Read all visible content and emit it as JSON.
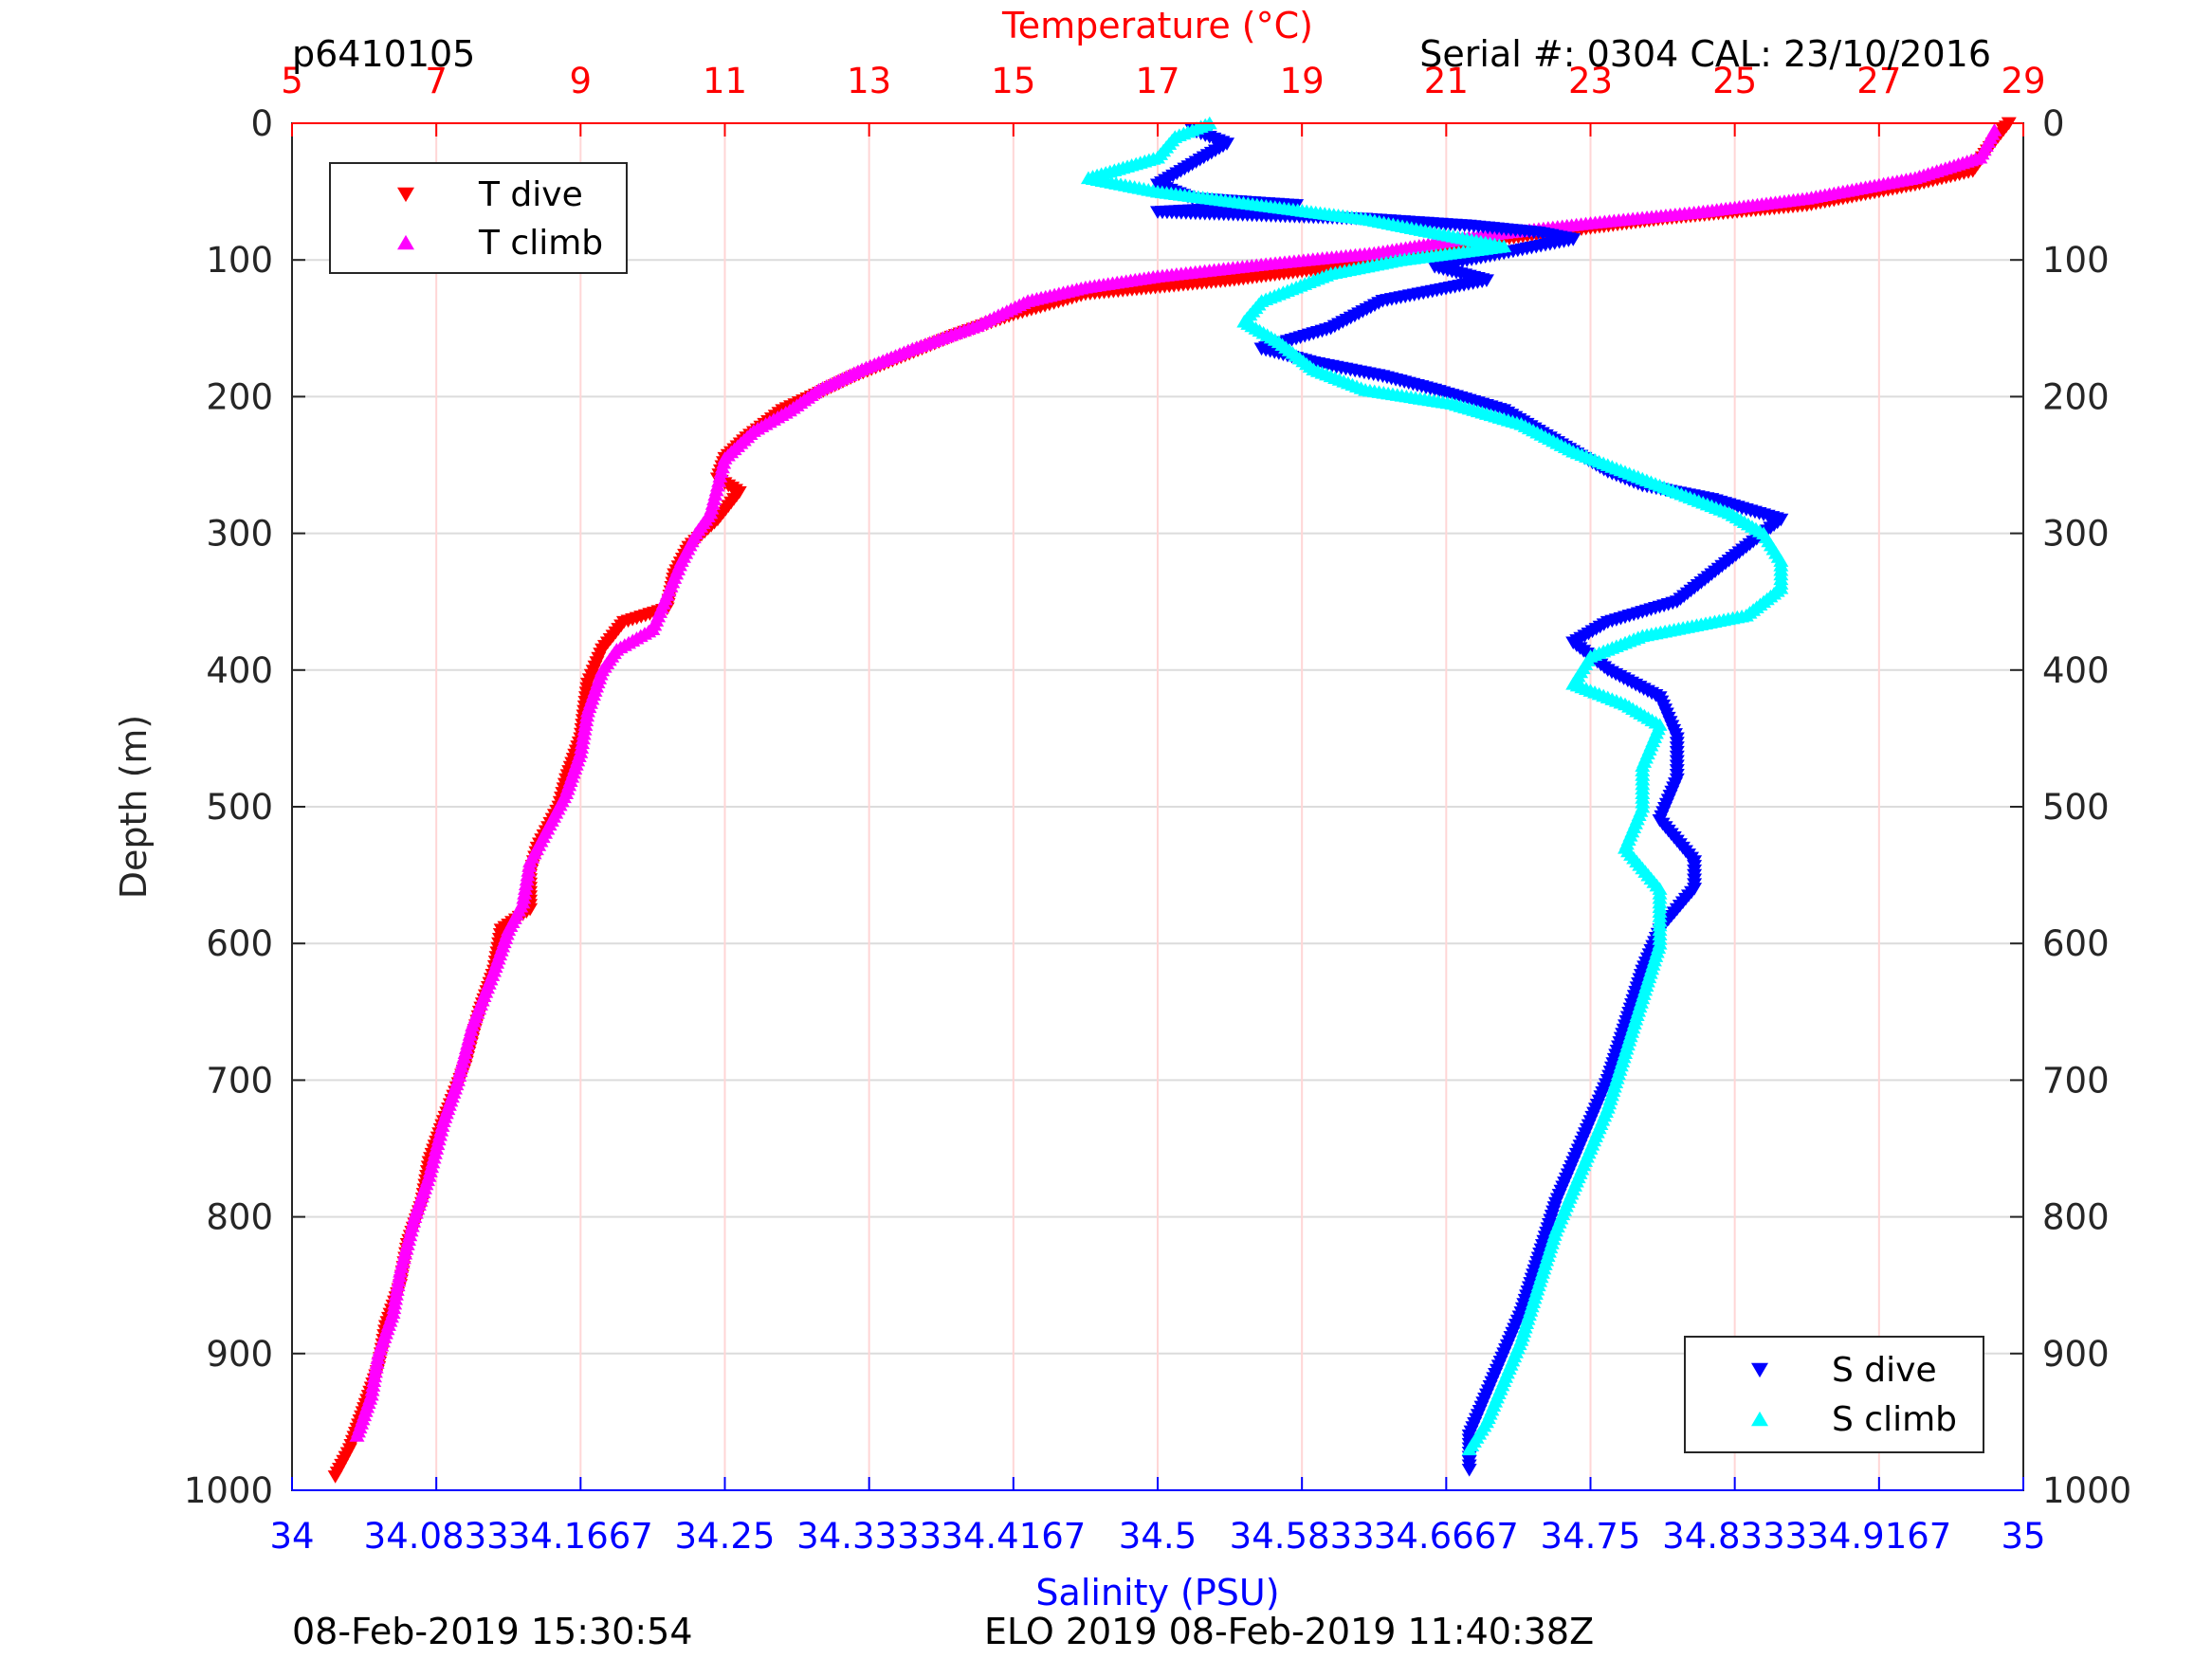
{
  "header": {
    "profile_id": "p6410105",
    "serial": "Serial #: 0304  CAL: 23/10/2016"
  },
  "footer": {
    "left": "08-Feb-2019 15:30:54",
    "center": "ELO 2019 08-Feb-2019 11:40:38Z"
  },
  "colors": {
    "t_dive": "#ff0000",
    "t_climb": "#ff00ff",
    "s_dive": "#0000ff",
    "s_climb": "#00ffff",
    "temp_axis": "#ff0000",
    "sal_axis": "#0000ff"
  },
  "chart_data": {
    "type": "scatter",
    "title": "",
    "ylabel": "Depth (m)",
    "ylim": [
      0,
      1000
    ],
    "y_reversed": true,
    "yticks": [
      "0",
      "100",
      "200",
      "300",
      "400",
      "500",
      "600",
      "700",
      "800",
      "900",
      "1000"
    ],
    "temperature_axis": {
      "label": "Temperature (°C)",
      "range": [
        5,
        29
      ],
      "ticks": [
        "5",
        "7",
        "9",
        "11",
        "13",
        "15",
        "17",
        "19",
        "21",
        "23",
        "25",
        "27",
        "29"
      ]
    },
    "salinity_axis": {
      "label": "Salinity (PSU)",
      "range": [
        34,
        35
      ],
      "ticks": [
        "34",
        "34.0833",
        "34.1667",
        "34.25",
        "34.3333",
        "34.4167",
        "34.5",
        "34.5833",
        "34.6667",
        "34.75",
        "34.8333",
        "34.9167",
        "35"
      ]
    },
    "grid": true,
    "legend_temperature": {
      "position": "top-left",
      "entries": [
        "T dive",
        "T climb"
      ]
    },
    "legend_salinity": {
      "position": "bottom-right",
      "entries": [
        "S dive",
        "S climb"
      ]
    },
    "series": [
      {
        "name": "T dive",
        "axis": "temperature",
        "marker": "triangle-down",
        "points": [
          [
            28.8,
            0
          ],
          [
            28.5,
            20
          ],
          [
            28.3,
            35
          ],
          [
            27.5,
            45
          ],
          [
            26.0,
            60
          ],
          [
            24.0,
            70
          ],
          [
            22.5,
            80
          ],
          [
            21.0,
            90
          ],
          [
            19.5,
            105
          ],
          [
            18.0,
            115
          ],
          [
            16.0,
            125
          ],
          [
            15.0,
            140
          ],
          [
            14.2,
            155
          ],
          [
            13.5,
            170
          ],
          [
            12.8,
            185
          ],
          [
            12.2,
            200
          ],
          [
            11.8,
            210
          ],
          [
            11.3,
            230
          ],
          [
            11.0,
            245
          ],
          [
            10.9,
            260
          ],
          [
            11.2,
            270
          ],
          [
            10.9,
            290
          ],
          [
            10.5,
            310
          ],
          [
            10.3,
            330
          ],
          [
            10.2,
            355
          ],
          [
            9.6,
            365
          ],
          [
            9.3,
            385
          ],
          [
            9.1,
            410
          ],
          [
            9.0,
            450
          ],
          [
            8.8,
            480
          ],
          [
            8.7,
            500
          ],
          [
            8.4,
            530
          ],
          [
            8.3,
            550
          ],
          [
            8.3,
            575
          ],
          [
            7.9,
            590
          ],
          [
            7.8,
            620
          ],
          [
            7.6,
            650
          ],
          [
            7.4,
            690
          ],
          [
            7.1,
            730
          ],
          [
            6.9,
            760
          ],
          [
            6.8,
            790
          ],
          [
            6.6,
            820
          ],
          [
            6.5,
            850
          ],
          [
            6.3,
            880
          ],
          [
            6.2,
            910
          ],
          [
            6.0,
            940
          ],
          [
            5.8,
            970
          ],
          [
            5.6,
            990
          ]
        ]
      },
      {
        "name": "T climb",
        "axis": "temperature",
        "marker": "triangle-up",
        "points": [
          [
            28.6,
            5
          ],
          [
            28.4,
            25
          ],
          [
            27.5,
            40
          ],
          [
            26.0,
            55
          ],
          [
            24.5,
            65
          ],
          [
            23.0,
            73
          ],
          [
            21.5,
            82
          ],
          [
            20.0,
            95
          ],
          [
            18.5,
            103
          ],
          [
            17.0,
            112
          ],
          [
            16.0,
            120
          ],
          [
            15.2,
            130
          ],
          [
            14.5,
            148
          ],
          [
            13.6,
            165
          ],
          [
            12.9,
            180
          ],
          [
            12.3,
            195
          ],
          [
            11.9,
            210
          ],
          [
            11.4,
            225
          ],
          [
            11.0,
            245
          ],
          [
            10.9,
            265
          ],
          [
            10.8,
            285
          ],
          [
            10.6,
            300
          ],
          [
            10.4,
            320
          ],
          [
            10.2,
            345
          ],
          [
            10.0,
            370
          ],
          [
            9.5,
            385
          ],
          [
            9.3,
            400
          ],
          [
            9.1,
            430
          ],
          [
            9.0,
            460
          ],
          [
            8.8,
            490
          ],
          [
            8.6,
            510
          ],
          [
            8.3,
            540
          ],
          [
            8.2,
            570
          ],
          [
            8.0,
            590
          ],
          [
            7.8,
            620
          ],
          [
            7.5,
            660
          ],
          [
            7.3,
            700
          ],
          [
            7.1,
            730
          ],
          [
            6.9,
            770
          ],
          [
            6.7,
            800
          ],
          [
            6.5,
            840
          ],
          [
            6.4,
            870
          ],
          [
            6.2,
            900
          ],
          [
            6.1,
            930
          ],
          [
            5.9,
            960
          ]
        ]
      },
      {
        "name": "S dive",
        "axis": "salinity",
        "marker": "triangle-down",
        "points": [
          [
            34.52,
            5
          ],
          [
            34.54,
            15
          ],
          [
            34.52,
            30
          ],
          [
            34.5,
            45
          ],
          [
            34.52,
            55
          ],
          [
            34.58,
            60
          ],
          [
            34.5,
            65
          ],
          [
            34.62,
            70
          ],
          [
            34.68,
            75
          ],
          [
            34.72,
            80
          ],
          [
            34.74,
            85
          ],
          [
            34.7,
            95
          ],
          [
            34.66,
            105
          ],
          [
            34.69,
            115
          ],
          [
            34.63,
            130
          ],
          [
            34.6,
            150
          ],
          [
            34.56,
            165
          ],
          [
            34.59,
            175
          ],
          [
            34.63,
            185
          ],
          [
            34.66,
            195
          ],
          [
            34.7,
            210
          ],
          [
            34.72,
            225
          ],
          [
            34.74,
            240
          ],
          [
            34.76,
            255
          ],
          [
            34.78,
            265
          ],
          [
            34.82,
            275
          ],
          [
            34.86,
            290
          ],
          [
            34.84,
            310
          ],
          [
            34.82,
            330
          ],
          [
            34.8,
            350
          ],
          [
            34.76,
            365
          ],
          [
            34.74,
            380
          ],
          [
            34.76,
            400
          ],
          [
            34.79,
            420
          ],
          [
            34.8,
            450
          ],
          [
            34.8,
            480
          ],
          [
            34.79,
            510
          ],
          [
            34.81,
            540
          ],
          [
            34.81,
            560
          ],
          [
            34.79,
            590
          ],
          [
            34.78,
            620
          ],
          [
            34.77,
            660
          ],
          [
            34.76,
            700
          ],
          [
            34.75,
            730
          ],
          [
            34.74,
            760
          ],
          [
            34.73,
            790
          ],
          [
            34.72,
            830
          ],
          [
            34.71,
            870
          ],
          [
            34.7,
            900
          ],
          [
            34.69,
            930
          ],
          [
            34.68,
            960
          ],
          [
            34.68,
            985
          ]
        ]
      },
      {
        "name": "S climb",
        "axis": "salinity",
        "marker": "triangle-up",
        "points": [
          [
            34.53,
            0
          ],
          [
            34.51,
            10
          ],
          [
            34.5,
            25
          ],
          [
            34.46,
            40
          ],
          [
            34.5,
            50
          ],
          [
            34.56,
            60
          ],
          [
            34.62,
            70
          ],
          [
            34.66,
            80
          ],
          [
            34.7,
            90
          ],
          [
            34.64,
            100
          ],
          [
            34.6,
            110
          ],
          [
            34.58,
            120
          ],
          [
            34.56,
            130
          ],
          [
            34.55,
            145
          ],
          [
            34.57,
            160
          ],
          [
            34.59,
            180
          ],
          [
            34.62,
            195
          ],
          [
            34.67,
            205
          ],
          [
            34.71,
            220
          ],
          [
            34.74,
            240
          ],
          [
            34.77,
            255
          ],
          [
            34.8,
            270
          ],
          [
            34.83,
            285
          ],
          [
            34.85,
            300
          ],
          [
            34.86,
            320
          ],
          [
            34.86,
            340
          ],
          [
            34.84,
            360
          ],
          [
            34.78,
            375
          ],
          [
            34.75,
            390
          ],
          [
            34.74,
            410
          ],
          [
            34.77,
            425
          ],
          [
            34.79,
            440
          ],
          [
            34.78,
            470
          ],
          [
            34.78,
            500
          ],
          [
            34.77,
            530
          ],
          [
            34.79,
            560
          ],
          [
            34.79,
            600
          ],
          [
            34.78,
            640
          ],
          [
            34.77,
            680
          ],
          [
            34.76,
            720
          ],
          [
            34.75,
            750
          ],
          [
            34.74,
            780
          ],
          [
            34.73,
            810
          ],
          [
            34.72,
            850
          ],
          [
            34.71,
            890
          ],
          [
            34.7,
            920
          ],
          [
            34.69,
            950
          ],
          [
            34.68,
            970
          ]
        ]
      }
    ]
  }
}
